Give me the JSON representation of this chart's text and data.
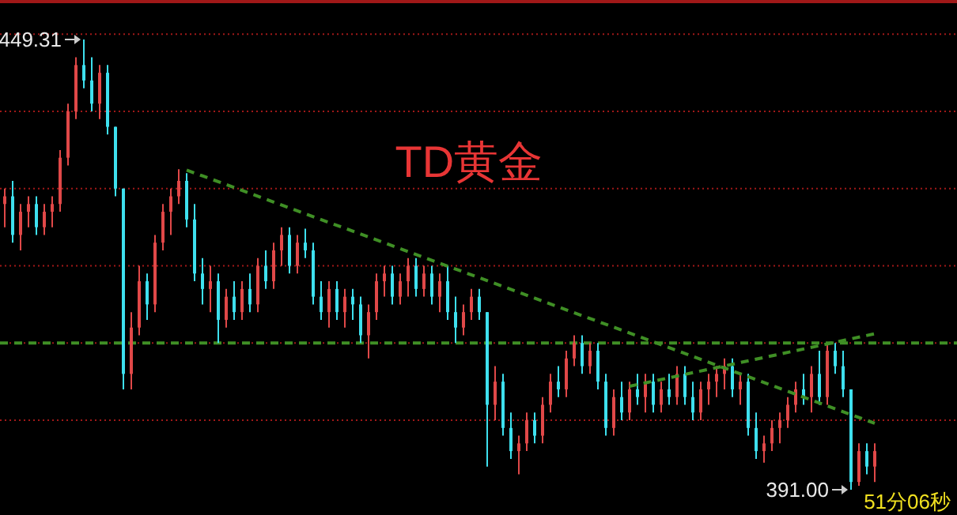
{
  "chart_data": {
    "type": "candlestick",
    "title": "TD黄金",
    "categories": [
      null,
      null,
      null,
      null,
      null,
      null,
      null,
      null,
      null,
      null,
      null,
      null,
      null,
      null,
      null,
      null,
      null,
      null,
      null,
      null,
      null,
      null,
      null,
      null,
      null,
      null,
      null,
      null,
      null,
      null,
      null,
      null,
      null,
      null,
      null,
      null,
      null,
      null,
      null,
      null,
      null,
      null,
      null,
      null,
      null,
      null,
      null,
      null,
      null,
      null,
      null,
      null,
      null,
      null,
      null,
      null,
      null,
      null,
      null,
      null,
      null,
      null,
      null,
      null,
      null,
      null,
      null,
      null,
      null,
      null,
      null,
      null,
      null,
      null,
      null,
      null,
      null,
      null,
      null,
      null,
      null,
      null,
      null,
      null,
      null,
      null,
      null,
      null,
      null,
      null,
      null,
      null,
      null,
      null,
      null,
      null,
      null,
      null,
      null,
      null,
      null,
      null,
      null,
      null,
      null,
      null,
      null,
      null,
      null,
      null,
      null
    ],
    "ohlc": [
      [
        428,
        430,
        425,
        429
      ],
      [
        429,
        431,
        423,
        424
      ],
      [
        424,
        428,
        422,
        427
      ],
      [
        427,
        429,
        425,
        428
      ],
      [
        428,
        429,
        424,
        425
      ],
      [
        425,
        428,
        424,
        427
      ],
      [
        427,
        429,
        425,
        428
      ],
      [
        428,
        435,
        427,
        434
      ],
      [
        434,
        441,
        433,
        440
      ],
      [
        440,
        447,
        439,
        446
      ],
      [
        446,
        449.31,
        443,
        444
      ],
      [
        444,
        447,
        440,
        441
      ],
      [
        441,
        446,
        439,
        445
      ],
      [
        445,
        446,
        437,
        438
      ],
      [
        438,
        438,
        429,
        430
      ],
      [
        430,
        430,
        404,
        406
      ],
      [
        406,
        414,
        404,
        412
      ],
      [
        412,
        420,
        411,
        418
      ],
      [
        418,
        419,
        413,
        415
      ],
      [
        415,
        424,
        414,
        423
      ],
      [
        423,
        428,
        422,
        427
      ],
      [
        427,
        430,
        424,
        429
      ],
      [
        429,
        432.5,
        428,
        431
      ],
      [
        431,
        432,
        425,
        426
      ],
      [
        426,
        428,
        418,
        419
      ],
      [
        419,
        421,
        415,
        417
      ],
      [
        417,
        420,
        414,
        418
      ],
      [
        418,
        419,
        410,
        413
      ],
      [
        413,
        417,
        412,
        416
      ],
      [
        416,
        418,
        413,
        414
      ],
      [
        414,
        418,
        413,
        417
      ],
      [
        417,
        419,
        414,
        415
      ],
      [
        415,
        421,
        414,
        420
      ],
      [
        420,
        422,
        417,
        418
      ],
      [
        418,
        423,
        417,
        422
      ],
      [
        422,
        425,
        420,
        424
      ],
      [
        424,
        425,
        419,
        420
      ],
      [
        420,
        424,
        419,
        423
      ],
      [
        423,
        424.8,
        421,
        422
      ],
      [
        422,
        423,
        415,
        416
      ],
      [
        416,
        418,
        413,
        414
      ],
      [
        414,
        418,
        412,
        417
      ],
      [
        417,
        418,
        413,
        414
      ],
      [
        414,
        417,
        412,
        416
      ],
      [
        416,
        417,
        413,
        415
      ],
      [
        415,
        416,
        410,
        411
      ],
      [
        411,
        415,
        408,
        414
      ],
      [
        414,
        419,
        413,
        418
      ],
      [
        418,
        420,
        416,
        419
      ],
      [
        419,
        420,
        415,
        416
      ],
      [
        416,
        419,
        415,
        418
      ],
      [
        418,
        421,
        416,
        420
      ],
      [
        420,
        421,
        416,
        417
      ],
      [
        417,
        420,
        416,
        419
      ],
      [
        419,
        420,
        415,
        416
      ],
      [
        416,
        419,
        414,
        418
      ],
      [
        418,
        420,
        413,
        414
      ],
      [
        414,
        416,
        410,
        412
      ],
      [
        412,
        415,
        411,
        414
      ],
      [
        414,
        417,
        413,
        416
      ],
      [
        416,
        417,
        413,
        414
      ],
      [
        414,
        414,
        394,
        402
      ],
      [
        402,
        407,
        400,
        405
      ],
      [
        405,
        406,
        398,
        399
      ],
      [
        399,
        401,
        395,
        396
      ],
      [
        396,
        398,
        393,
        397
      ],
      [
        397,
        401,
        396,
        400
      ],
      [
        400,
        401,
        397,
        398
      ],
      [
        398,
        403,
        397,
        402
      ],
      [
        402,
        406,
        401,
        405
      ],
      [
        405,
        407,
        403,
        404
      ],
      [
        404,
        409,
        403,
        408
      ],
      [
        408,
        411,
        407,
        410
      ],
      [
        410,
        411,
        406,
        407
      ],
      [
        407,
        410,
        406,
        409
      ],
      [
        409,
        410,
        404,
        405
      ],
      [
        405,
        406,
        398,
        399
      ],
      [
        399,
        404,
        398,
        403
      ],
      [
        403,
        405,
        400,
        401
      ],
      [
        401,
        405,
        400,
        404
      ],
      [
        404,
        406,
        402,
        403
      ],
      [
        403,
        406,
        401,
        405
      ],
      [
        405,
        406,
        401,
        402
      ],
      [
        402,
        405,
        401,
        404
      ],
      [
        404,
        406,
        402,
        403
      ],
      [
        403,
        407,
        402,
        406
      ],
      [
        406,
        407,
        402,
        403
      ],
      [
        403,
        405,
        400,
        401
      ],
      [
        401,
        405,
        400,
        404
      ],
      [
        404,
        406,
        402,
        405
      ],
      [
        405,
        407,
        403,
        406
      ],
      [
        406,
        408,
        404,
        407
      ],
      [
        407,
        408,
        403,
        404
      ],
      [
        404,
        406,
        402,
        405
      ],
      [
        405,
        406,
        398,
        399
      ],
      [
        399,
        401,
        395,
        396
      ],
      [
        396,
        398,
        394.5,
        397
      ],
      [
        397,
        400,
        396,
        399
      ],
      [
        399,
        401,
        397,
        400
      ],
      [
        400,
        403,
        399,
        402
      ],
      [
        402,
        405,
        401,
        404
      ],
      [
        404,
        406,
        402,
        403
      ],
      [
        403,
        407,
        401,
        406
      ],
      [
        406,
        409,
        402,
        403
      ],
      [
        403,
        410,
        402,
        409
      ],
      [
        409,
        410,
        406,
        407
      ],
      [
        407,
        409,
        403,
        404
      ],
      [
        404,
        404,
        391,
        392
      ],
      [
        392,
        397,
        391.5,
        396
      ],
      [
        396,
        397,
        393,
        394
      ],
      [
        394,
        397,
        392,
        396
      ]
    ],
    "colors": [
      "#e04848",
      "#3ee0ee",
      "#e04848",
      "#e04848",
      "#3ee0ee",
      "#e04848",
      "#e04848",
      "#e04848",
      "#e04848",
      "#e04848",
      "#3ee0ee",
      "#3ee0ee",
      "#e04848",
      "#3ee0ee",
      "#3ee0ee",
      "#3ee0ee",
      "#e04848",
      "#e04848",
      "#3ee0ee",
      "#e04848",
      "#e04848",
      "#e04848",
      "#e04848",
      "#3ee0ee",
      "#3ee0ee",
      "#3ee0ee",
      "#e04848",
      "#3ee0ee",
      "#e04848",
      "#3ee0ee",
      "#e04848",
      "#3ee0ee",
      "#e04848",
      "#3ee0ee",
      "#e04848",
      "#e04848",
      "#3ee0ee",
      "#e04848",
      "#3ee0ee",
      "#3ee0ee",
      "#3ee0ee",
      "#e04848",
      "#3ee0ee",
      "#e04848",
      "#3ee0ee",
      "#3ee0ee",
      "#e04848",
      "#e04848",
      "#e04848",
      "#3ee0ee",
      "#e04848",
      "#e04848",
      "#3ee0ee",
      "#e04848",
      "#3ee0ee",
      "#e04848",
      "#3ee0ee",
      "#3ee0ee",
      "#e04848",
      "#e04848",
      "#3ee0ee",
      "#3ee0ee",
      "#e04848",
      "#3ee0ee",
      "#3ee0ee",
      "#e04848",
      "#e04848",
      "#3ee0ee",
      "#e04848",
      "#e04848",
      "#3ee0ee",
      "#e04848",
      "#e04848",
      "#3ee0ee",
      "#e04848",
      "#3ee0ee",
      "#3ee0ee",
      "#e04848",
      "#3ee0ee",
      "#e04848",
      "#3ee0ee",
      "#e04848",
      "#3ee0ee",
      "#e04848",
      "#3ee0ee",
      "#e04848",
      "#3ee0ee",
      "#3ee0ee",
      "#e04848",
      "#e04848",
      "#e04848",
      "#e04848",
      "#3ee0ee",
      "#e04848",
      "#3ee0ee",
      "#3ee0ee",
      "#e04848",
      "#e04848",
      "#e04848",
      "#e04848",
      "#e04848",
      "#3ee0ee",
      "#e04848",
      "#3ee0ee",
      "#e04848",
      "#3ee0ee",
      "#3ee0ee",
      "#3ee0ee",
      "#e04848",
      "#3ee0ee",
      "#e04848"
    ],
    "series": [
      {
        "type": "line",
        "color": "#3f8f25",
        "line_style": "dashed",
        "values": [
          null,
          null,
          null,
          null,
          null,
          null,
          null,
          null,
          null,
          null,
          null,
          null,
          null,
          null,
          null,
          null,
          null,
          null,
          null,
          null,
          null,
          null,
          null,
          432.4,
          null,
          null,
          null,
          null,
          null,
          null,
          null,
          null,
          null,
          null,
          null,
          null,
          null,
          null,
          null,
          null,
          null,
          null,
          null,
          null,
          null,
          null,
          null,
          null,
          null,
          null,
          null,
          null,
          null,
          null,
          null,
          null,
          null,
          null,
          null,
          null,
          null,
          null,
          null,
          null,
          null,
          null,
          null,
          null,
          null,
          null,
          null,
          null,
          null,
          null,
          null,
          null,
          null,
          null,
          null,
          null,
          null,
          null,
          null,
          null,
          null,
          null,
          null,
          null,
          null,
          null,
          null,
          null,
          null,
          null,
          null,
          null,
          null,
          null,
          null,
          null,
          null,
          null,
          null,
          null,
          null,
          null,
          null,
          null,
          null,
          null,
          399.6
        ]
      },
      {
        "type": "line",
        "color": "#3f8f25",
        "line_style": "dashed",
        "values": [
          null,
          null,
          null,
          null,
          null,
          null,
          null,
          null,
          null,
          null,
          null,
          null,
          null,
          null,
          null,
          null,
          null,
          null,
          null,
          null,
          null,
          null,
          null,
          null,
          null,
          null,
          null,
          null,
          null,
          null,
          null,
          null,
          null,
          null,
          null,
          null,
          null,
          null,
          null,
          null,
          null,
          null,
          null,
          null,
          null,
          null,
          null,
          null,
          null,
          null,
          null,
          null,
          null,
          null,
          null,
          null,
          null,
          null,
          null,
          null,
          null,
          null,
          null,
          null,
          null,
          null,
          null,
          null,
          null,
          null,
          null,
          null,
          null,
          null,
          null,
          null,
          null,
          null,
          null,
          404.4,
          null,
          null,
          null,
          null,
          null,
          null,
          null,
          null,
          null,
          null,
          null,
          null,
          null,
          null,
          null,
          null,
          null,
          null,
          null,
          null,
          null,
          null,
          null,
          null,
          null,
          null,
          null,
          null,
          null,
          null,
          411.2
        ]
      }
    ],
    "ref_lines": [
      {
        "axis": "y",
        "value": 410,
        "color": "#3f8f25",
        "line_style": "dashed"
      }
    ],
    "yticks": [
      {
        "value": 450,
        "label": null
      },
      {
        "value": 440,
        "label": null
      },
      {
        "value": 430,
        "label": null
      },
      {
        "value": 420,
        "label": null
      },
      {
        "value": 410,
        "label": null
      },
      {
        "value": 400,
        "label": null
      }
    ],
    "grid": "y",
    "annotations": [
      "449.31",
      "391.00",
      "51分06秒"
    ]
  }
}
